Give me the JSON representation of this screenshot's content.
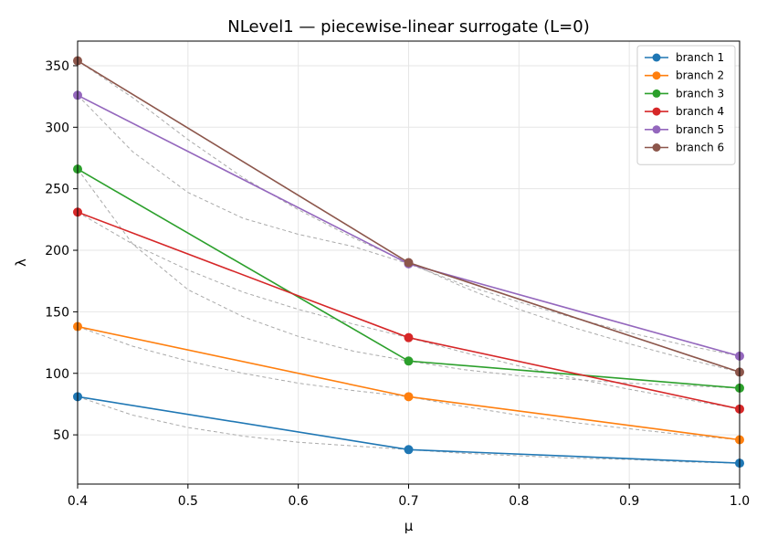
{
  "chart_data": {
    "type": "line",
    "title": "NLevel1 — piecewise-linear surrogate (L=0)",
    "xlabel": "μ",
    "ylabel": "λ",
    "xlim": [
      0.4,
      1.0
    ],
    "ylim": [
      10,
      370
    ],
    "xticks": [
      0.4,
      0.5,
      0.6,
      0.7,
      0.8,
      0.9,
      1.0
    ],
    "xtick_labels": [
      "0.4",
      "0.5",
      "0.6",
      "0.7",
      "0.8",
      "0.9",
      "1.0"
    ],
    "yticks": [
      50,
      100,
      150,
      200,
      250,
      300,
      350
    ],
    "ytick_labels": [
      "50",
      "100",
      "150",
      "200",
      "250",
      "300",
      "350"
    ],
    "grid": true,
    "legend_position": "top-right",
    "x": [
      0.4,
      0.7,
      1.0
    ],
    "series": [
      {
        "name": "branch 1",
        "color": "#1f77b4",
        "values": [
          81,
          38,
          27
        ]
      },
      {
        "name": "branch 2",
        "color": "#ff7f0e",
        "values": [
          138,
          81,
          46
        ]
      },
      {
        "name": "branch 3",
        "color": "#2ca02c",
        "values": [
          266,
          110,
          88
        ]
      },
      {
        "name": "branch 4",
        "color": "#d62728",
        "values": [
          231,
          129,
          71
        ]
      },
      {
        "name": "branch 5",
        "color": "#9467bd",
        "values": [
          326,
          189,
          114
        ]
      },
      {
        "name": "branch 6",
        "color": "#8c564b",
        "values": [
          354,
          190,
          101
        ]
      }
    ],
    "reference_curves": {
      "style": "dashed",
      "color": "#aaaaaa",
      "curves": [
        {
          "x": [
            0.4,
            0.45,
            0.5,
            0.55,
            0.6,
            0.65,
            0.7,
            0.75,
            0.8,
            0.85,
            0.9,
            0.95,
            1.0
          ],
          "y": [
            81,
            66,
            56,
            49,
            44,
            41,
            38,
            35,
            33,
            31,
            30,
            28,
            27
          ]
        },
        {
          "x": [
            0.4,
            0.45,
            0.5,
            0.55,
            0.6,
            0.65,
            0.7,
            0.75,
            0.8,
            0.85,
            0.9,
            0.95,
            1.0
          ],
          "y": [
            138,
            122,
            110,
            100,
            92,
            86,
            81,
            73,
            66,
            60,
            55,
            50,
            46
          ]
        },
        {
          "x": [
            0.4,
            0.45,
            0.5,
            0.55,
            0.6,
            0.65,
            0.7,
            0.75,
            0.8,
            0.85,
            0.9,
            0.95,
            1.0
          ],
          "y": [
            266,
            205,
            168,
            146,
            130,
            118,
            110,
            103,
            98,
            95,
            92,
            90,
            88
          ]
        },
        {
          "x": [
            0.4,
            0.45,
            0.5,
            0.55,
            0.6,
            0.65,
            0.7,
            0.75,
            0.8,
            0.85,
            0.9,
            0.95,
            1.0
          ],
          "y": [
            231,
            205,
            184,
            166,
            152,
            140,
            129,
            117,
            106,
            96,
            87,
            79,
            71
          ]
        },
        {
          "x": [
            0.4,
            0.45,
            0.5,
            0.55,
            0.6,
            0.65,
            0.7,
            0.75,
            0.8,
            0.85,
            0.9,
            0.95,
            1.0
          ],
          "y": [
            326,
            280,
            247,
            226,
            213,
            203,
            189,
            172,
            158,
            145,
            133,
            123,
            114
          ]
        },
        {
          "x": [
            0.4,
            0.45,
            0.5,
            0.55,
            0.6,
            0.65,
            0.7,
            0.75,
            0.8,
            0.85,
            0.9,
            0.95,
            1.0
          ],
          "y": [
            354,
            324,
            290,
            259,
            233,
            210,
            190,
            170,
            152,
            137,
            124,
            112,
            101
          ]
        }
      ]
    }
  }
}
